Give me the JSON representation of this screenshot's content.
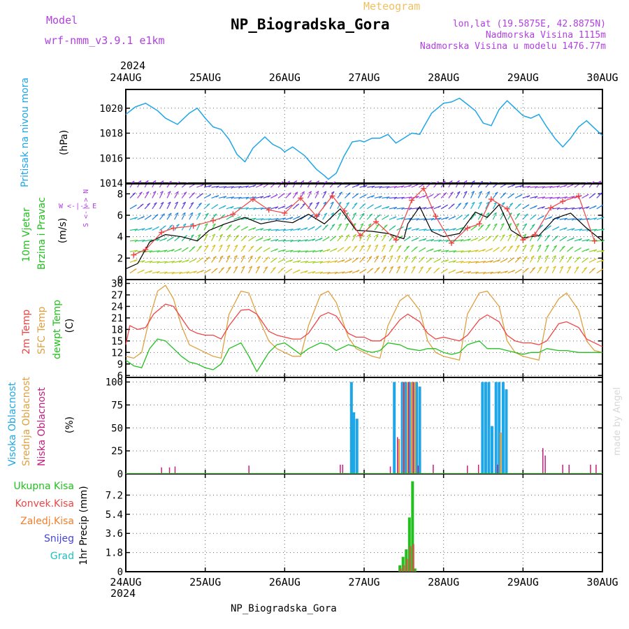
{
  "header": {
    "model_label": "Model",
    "model_name": "wrf-nmm_v3.9.1  e1km",
    "meteogram_label": "Meteogram",
    "station": "NP_Biogradska_Gora",
    "lonlat": "lon,lat (19.5875E, 42.8875N)",
    "elevation": "Nadmorska Visina 1115m",
    "model_elevation": "Nadmorska Visina u modelu 1476.77m",
    "footer": "NP_Biogradska_Gora",
    "credit": "made by Angel",
    "year_top": "2024",
    "year_bottom": "2024"
  },
  "colors": {
    "pressure": "#1ea6e8",
    "temp2m": "#ef4444",
    "sfc_temp": "#e0a040",
    "dewpt": "#22c01e",
    "high_cloud": "#1ea6e8",
    "mid_cloud": "#e0a040",
    "low_cloud": "#c02080",
    "total_precip": "#22c01e",
    "conv_precip": "#ef4444",
    "frozen_precip": "#f08030",
    "snow": "#4444dd",
    "graupel": "#20c0c0",
    "purple_text": "#b040e0",
    "orange_text": "#f0c060",
    "axis": "#000000",
    "grid": "#666666"
  },
  "chart_data": [
    {
      "id": "pressure",
      "type": "line",
      "title": "Pritisak na nivou mora",
      "ylabel": "(hPa)",
      "ylim": [
        1014,
        1021.5
      ],
      "yticks": [
        1014,
        1016,
        1018,
        1020
      ],
      "x_days": [
        "24AUG",
        "25AUG",
        "26AUG",
        "27AUG",
        "28AUG",
        "29AUG",
        "30AUG"
      ],
      "xlim": [
        0,
        6
      ],
      "x_unit": "days since 24AUG 00UTC",
      "series": [
        {
          "name": "Pritisak na nivou mora",
          "x": [
            0,
            0.12,
            0.25,
            0.4,
            0.5,
            0.65,
            0.8,
            0.9,
            1.0,
            1.1,
            1.2,
            1.3,
            1.4,
            1.5,
            1.6,
            1.75,
            1.85,
            1.95,
            2.0,
            2.1,
            2.25,
            2.4,
            2.5,
            2.55,
            2.65,
            2.75,
            2.85,
            2.95,
            3.0,
            3.1,
            3.2,
            3.3,
            3.4,
            3.5,
            3.6,
            3.7,
            3.75,
            3.85,
            4.0,
            4.1,
            4.2,
            4.3,
            4.4,
            4.5,
            4.6,
            4.7,
            4.8,
            4.9,
            5.0,
            5.1,
            5.2,
            5.3,
            5.4,
            5.5,
            5.6,
            5.7,
            5.8,
            5.9,
            6.0
          ],
          "y": [
            1019.5,
            1020.1,
            1020.4,
            1019.8,
            1019.2,
            1018.7,
            1019.6,
            1020.0,
            1019.2,
            1018.5,
            1018.3,
            1017.5,
            1016.3,
            1015.7,
            1016.8,
            1017.7,
            1017.1,
            1016.8,
            1016.5,
            1016.9,
            1016.2,
            1015.1,
            1014.6,
            1014.3,
            1014.8,
            1016.2,
            1017.3,
            1017.4,
            1017.3,
            1017.6,
            1017.6,
            1017.9,
            1017.2,
            1017.6,
            1018.0,
            1017.9,
            1018.5,
            1019.6,
            1020.4,
            1020.5,
            1020.8,
            1020.3,
            1019.8,
            1018.8,
            1018.6,
            1019.9,
            1020.6,
            1020.0,
            1019.4,
            1019.2,
            1019.5,
            1018.5,
            1017.6,
            1016.9,
            1017.6,
            1018.5,
            1019.0,
            1018.4,
            1017.8
          ]
        }
      ]
    },
    {
      "id": "wind",
      "type": "line",
      "title": "10m Vjetar",
      "subtitle": "Brzina i Pravac",
      "ylabel": "(m/s)",
      "compass": "W  <-|->  E",
      "compass_vertical": "S <-|-> N",
      "ylim": [
        0,
        9
      ],
      "yticks": [
        0,
        2,
        4,
        6,
        8
      ],
      "xlim": [
        0,
        6
      ],
      "series": [
        {
          "name": "Brzina",
          "x": [
            0,
            0.15,
            0.3,
            0.5,
            0.7,
            0.9,
            1.05,
            1.25,
            1.5,
            1.7,
            1.9,
            2.1,
            2.3,
            2.5,
            2.7,
            2.9,
            3.1,
            3.3,
            3.5,
            3.55,
            3.7,
            3.85,
            4.0,
            4.2,
            4.4,
            4.55,
            4.7,
            4.85,
            5.0,
            5.2,
            5.4,
            5.6,
            5.8,
            6.0
          ],
          "y": [
            1.0,
            1.5,
            3.5,
            4.2,
            4.0,
            3.6,
            4.6,
            5.2,
            5.8,
            5.2,
            5.5,
            5.3,
            6.1,
            5.2,
            6.6,
            4.6,
            4.5,
            4.3,
            3.8,
            5.2,
            6.8,
            4.5,
            4.0,
            4.3,
            6.3,
            5.8,
            7.0,
            4.6,
            3.9,
            4.1,
            5.7,
            6.2,
            4.8,
            3.6
          ]
        },
        {
          "name": "Udari",
          "x": [
            0.1,
            0.25,
            0.45,
            0.6,
            0.85,
            1.1,
            1.35,
            1.6,
            1.8,
            2.0,
            2.2,
            2.4,
            2.6,
            2.75,
            2.95,
            3.15,
            3.4,
            3.6,
            3.75,
            3.9,
            4.1,
            4.3,
            4.45,
            4.6,
            4.8,
            5.0,
            5.15,
            5.35,
            5.5,
            5.7,
            5.9
          ],
          "y": [
            2.3,
            2.8,
            4.4,
            4.8,
            5.0,
            5.5,
            6.1,
            7.5,
            6.5,
            6.2,
            7.6,
            5.9,
            7.8,
            6.4,
            4.1,
            5.4,
            3.7,
            7.4,
            8.5,
            5.9,
            3.4,
            4.8,
            5.2,
            7.5,
            6.6,
            3.7,
            4.2,
            6.7,
            7.3,
            7.8,
            3.6
          ]
        }
      ]
    },
    {
      "id": "temperature",
      "type": "line",
      "title": "2m Temp",
      "subtitle": "SFC Temp",
      "subtitle2": "dewpt Temp",
      "ylabel": "(C)",
      "ylim": [
        5.5,
        31
      ],
      "yticks": [
        6,
        9,
        12,
        15,
        18,
        21,
        24,
        27,
        30
      ],
      "xlim": [
        0,
        6
      ],
      "series": [
        {
          "name": "2m Temp",
          "x": [
            0,
            0.05,
            0.15,
            0.25,
            0.35,
            0.5,
            0.6,
            0.7,
            0.8,
            0.9,
            1.0,
            1.1,
            1.2,
            1.3,
            1.45,
            1.55,
            1.65,
            1.8,
            1.9,
            2.0,
            2.1,
            2.2,
            2.3,
            2.45,
            2.55,
            2.65,
            2.8,
            2.9,
            3.0,
            3.1,
            3.2,
            3.3,
            3.45,
            3.55,
            3.7,
            3.8,
            3.9,
            4.0,
            4.1,
            4.2,
            4.3,
            4.45,
            4.55,
            4.7,
            4.8,
            4.9,
            5.0,
            5.1,
            5.2,
            5.3,
            5.45,
            5.55,
            5.7,
            5.8,
            5.9,
            6.0
          ],
          "y": [
            14,
            19,
            18,
            18.5,
            22,
            24.6,
            24,
            21,
            18,
            17,
            16.5,
            16.5,
            15.5,
            19,
            23,
            23.2,
            22,
            17.5,
            16.5,
            16,
            15.5,
            15.5,
            17,
            21.5,
            22.4,
            21.5,
            17,
            16,
            16,
            15,
            15,
            16.5,
            20.5,
            22,
            20,
            17,
            15.5,
            16,
            15.5,
            15,
            16.5,
            20.5,
            21.8,
            20,
            16.5,
            15,
            14.5,
            14.5,
            14,
            15,
            19.5,
            20,
            18.5,
            15.5,
            14.5,
            13.5
          ]
        },
        {
          "name": "SFC Temp",
          "x": [
            0,
            0.1,
            0.2,
            0.3,
            0.4,
            0.5,
            0.6,
            0.7,
            0.8,
            0.9,
            1.0,
            1.1,
            1.2,
            1.3,
            1.45,
            1.55,
            1.65,
            1.8,
            1.9,
            2.0,
            2.1,
            2.2,
            2.3,
            2.45,
            2.55,
            2.65,
            2.8,
            2.9,
            3.0,
            3.1,
            3.2,
            3.3,
            3.45,
            3.55,
            3.7,
            3.8,
            3.9,
            4.0,
            4.1,
            4.2,
            4.3,
            4.45,
            4.55,
            4.7,
            4.8,
            4.9,
            5.0,
            5.1,
            5.2,
            5.3,
            5.45,
            5.55,
            5.7,
            5.8,
            5.9,
            6.0
          ],
          "y": [
            11,
            10.5,
            12,
            21,
            28,
            29.5,
            26,
            19,
            14,
            13,
            12,
            11,
            10.5,
            22,
            28,
            27.5,
            22,
            15,
            13,
            12,
            11,
            11,
            19,
            27,
            28,
            25,
            16,
            13,
            12,
            11,
            10.5,
            19,
            25.5,
            27,
            23,
            15,
            12,
            11,
            10.5,
            10,
            22,
            27.5,
            28,
            24,
            15,
            12,
            11,
            10.5,
            10,
            21,
            26,
            27.5,
            23,
            15,
            12.5,
            12
          ]
        },
        {
          "name": "dewpt Temp",
          "x": [
            0,
            0.1,
            0.2,
            0.3,
            0.4,
            0.5,
            0.6,
            0.7,
            0.8,
            0.9,
            1.0,
            1.1,
            1.2,
            1.3,
            1.45,
            1.55,
            1.65,
            1.8,
            1.9,
            2.0,
            2.1,
            2.2,
            2.3,
            2.45,
            2.55,
            2.65,
            2.8,
            2.9,
            3.0,
            3.1,
            3.2,
            3.3,
            3.45,
            3.55,
            3.7,
            3.8,
            3.9,
            4.0,
            4.1,
            4.2,
            4.3,
            4.45,
            4.55,
            4.7,
            4.8,
            4.9,
            5.0,
            5.1,
            5.2,
            5.3,
            5.45,
            5.55,
            5.7,
            5.8,
            5.9,
            6.0
          ],
          "y": [
            10,
            8.5,
            8,
            13,
            15.5,
            15,
            13,
            11,
            9.5,
            9,
            8,
            7.5,
            9,
            13,
            14.5,
            11,
            7,
            12,
            14,
            14.5,
            13,
            11.5,
            13,
            14.5,
            14,
            12.5,
            14,
            13.5,
            12.5,
            12,
            12.5,
            14.5,
            14,
            13,
            12.5,
            13,
            13,
            12,
            11.5,
            12,
            14,
            15,
            13,
            13,
            12.5,
            12,
            11.5,
            12,
            12,
            13,
            12.5,
            12.5,
            12,
            12,
            12,
            12
          ]
        }
      ]
    },
    {
      "id": "clouds",
      "type": "bar",
      "title": "Visoka Oblacnost",
      "subtitle": "Srednja Oblacnost",
      "subtitle2": "Niska Oblacnost",
      "ylabel": "(%)",
      "ylim": [
        0,
        105
      ],
      "yticks": [
        0,
        25,
        50,
        75,
        100
      ],
      "xlim": [
        0,
        6
      ],
      "series": [
        {
          "name": "Visoka Oblacnost",
          "x": [
            2.84,
            2.87,
            2.91,
            3.38,
            3.48,
            3.52,
            3.57,
            3.61,
            3.66,
            3.7,
            4.49,
            4.53,
            4.57,
            4.61,
            4.66,
            4.7,
            4.75,
            4.79
          ],
          "y": [
            100,
            67,
            60,
            100,
            100,
            100,
            100,
            100,
            100,
            95,
            100,
            100,
            100,
            52,
            100,
            100,
            100,
            92
          ]
        },
        {
          "name": "Srednja Oblacnost",
          "x": [
            3.44,
            3.5,
            3.55,
            3.6,
            3.64,
            4.72
          ],
          "y": [
            38,
            100,
            100,
            100,
            100,
            45
          ]
        },
        {
          "name": "Niska Oblacnost",
          "x": [
            0.45,
            0.55,
            0.62,
            1.55,
            2.7,
            2.73,
            3.33,
            3.42,
            3.5,
            3.56,
            3.62,
            3.68,
            3.87,
            4.3,
            4.44,
            4.68,
            5.25,
            5.28,
            5.5,
            5.58,
            5.85,
            5.92
          ],
          "y": [
            7,
            7,
            8,
            9,
            10,
            10,
            8,
            40,
            100,
            100,
            100,
            9,
            10,
            9,
            10,
            10,
            28,
            20,
            10,
            10,
            10,
            10
          ]
        }
      ]
    },
    {
      "id": "precip",
      "type": "bar",
      "title": "Ukupna Kisa",
      "legend": [
        "Ukupna Kisa",
        "Konvek.Kisa",
        "Zaledj.Kisa",
        "Snijeg",
        "Grad"
      ],
      "ylabel": "1hr Precip (mm)",
      "ylim": [
        0,
        9.2
      ],
      "yticks": [
        0,
        1.8,
        3.6,
        5.4,
        7.2
      ],
      "yticklabels": [
        "0",
        "1.8",
        "3.6",
        "5.4",
        "7.2"
      ],
      "xlim": [
        0,
        6
      ],
      "series": [
        {
          "name": "Ukupna Kisa",
          "x": [
            3.45,
            3.49,
            3.53,
            3.57,
            3.61,
            3.64
          ],
          "y": [
            0.6,
            1.4,
            2.1,
            5.1,
            8.5,
            0.3
          ]
        },
        {
          "name": "Konvek.Kisa",
          "x": [
            3.46,
            3.5,
            3.54,
            3.58,
            3.62
          ],
          "y": [
            0.3,
            0.6,
            1.2,
            2.4,
            2.6
          ]
        }
      ]
    }
  ]
}
